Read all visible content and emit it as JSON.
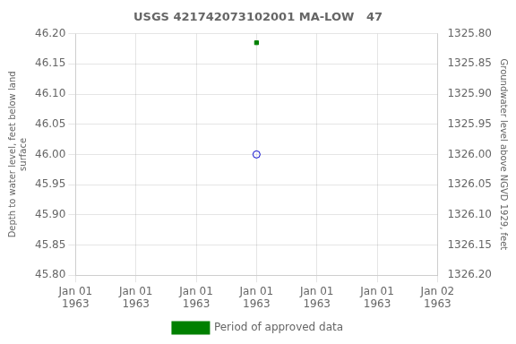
{
  "chart_data": {
    "type": "scatter",
    "title": "USGS 421742073102001 MA-LOW   47",
    "ylabel": "Depth to water level, feet below land\nsurface",
    "y2label": "Groundwater level above NGVD 1929, feet",
    "categories": [
      "Jan 01\n1963",
      "Jan 01\n1963",
      "Jan 01\n1963",
      "Jan 01\n1963",
      "Jan 01\n1963",
      "Jan 01\n1963",
      "Jan 02\n1963"
    ],
    "series": [
      {
        "color": "#0000cc",
        "marker": "circle",
        "values": [
          null,
          null,
          null,
          46.0,
          null,
          null,
          null
        ]
      },
      {
        "name": "Period of approved data",
        "color": "#008000",
        "marker": "square",
        "values": [
          null,
          null,
          null,
          46.185,
          null,
          null,
          null
        ]
      }
    ],
    "ylim": [
      45.8,
      46.2
    ],
    "yticks": [
      {
        "value": 45.8,
        "label": "45.80"
      },
      {
        "value": 45.85,
        "label": "45.85"
      },
      {
        "value": 45.9,
        "label": "45.90"
      },
      {
        "value": 45.95,
        "label": "45.95"
      },
      {
        "value": 46.0,
        "label": "46.00"
      },
      {
        "value": 46.05,
        "label": "46.05"
      },
      {
        "value": 46.1,
        "label": "46.10"
      },
      {
        "value": 46.15,
        "label": "46.15"
      },
      {
        "value": 46.2,
        "label": "46.20"
      }
    ],
    "y2lim": [
      1326.2,
      1325.8
    ],
    "y2ticks": [
      {
        "value": 1326.2,
        "label": "1326.20"
      },
      {
        "value": 1326.15,
        "label": "1326.15"
      },
      {
        "value": 1326.1,
        "label": "1326.10"
      },
      {
        "value": 1326.05,
        "label": "1326.05"
      },
      {
        "value": 1326.0,
        "label": "1326.00"
      },
      {
        "value": 1325.95,
        "label": "1325.95"
      },
      {
        "value": 1325.9,
        "label": "1325.90"
      },
      {
        "value": 1325.85,
        "label": "1325.85"
      },
      {
        "value": 1325.8,
        "label": "1325.80"
      }
    ],
    "grid": true,
    "legend": "bottom"
  }
}
